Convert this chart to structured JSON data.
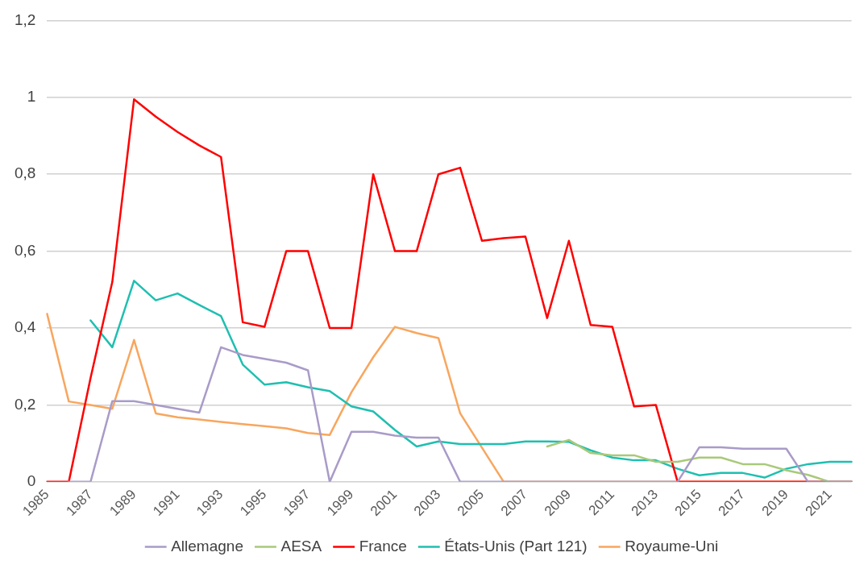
{
  "chart_data": {
    "type": "line",
    "categories": [
      "1985",
      null,
      "1987",
      null,
      "1989",
      null,
      "1991",
      null,
      "1993",
      null,
      "1995",
      null,
      "1997",
      null,
      "1999",
      null,
      "2001",
      null,
      "2003",
      null,
      "2005",
      null,
      "2007",
      null,
      "2009",
      null,
      "2011",
      null,
      "2013",
      null,
      "2015",
      null,
      "2017",
      null,
      "2019",
      null,
      "2021",
      null
    ],
    "series": [
      {
        "name": "Allemagne",
        "color": "#a99bc8",
        "values": [
          null,
          0,
          0,
          0.21,
          0.21,
          0.2,
          0.19,
          0.18,
          0.35,
          0.33,
          0.32,
          0.31,
          0.29,
          0,
          0.13,
          0.13,
          0.12,
          0.115,
          0.115,
          0,
          0,
          0,
          0,
          0,
          0,
          0,
          0,
          0,
          0,
          0,
          0.09,
          0.09,
          0.086,
          0.086,
          0.086,
          0,
          0,
          0
        ]
      },
      {
        "name": "AESA",
        "color": "#a9c97a",
        "values": [
          null,
          null,
          null,
          null,
          null,
          null,
          null,
          null,
          null,
          null,
          null,
          null,
          null,
          null,
          null,
          null,
          null,
          null,
          null,
          null,
          null,
          null,
          null,
          0.092,
          0.109,
          0.075,
          0.069,
          0.069,
          0.052,
          0.052,
          0.063,
          0.063,
          0.046,
          0.046,
          0.03,
          0.018,
          0,
          0
        ]
      },
      {
        "name": "France",
        "color": "#ff0000",
        "values": [
          0,
          0,
          0.27,
          0.52,
          0.995,
          0.95,
          0.91,
          0.875,
          0.845,
          0.415,
          0.403,
          0.6,
          0.6,
          0.4,
          0.4,
          0.8,
          0.6,
          0.6,
          0.8,
          0.817,
          0.627,
          0.634,
          0.638,
          0.426,
          0.627,
          0.408,
          0.403,
          0.196,
          0.2,
          0,
          0,
          0,
          0,
          0,
          0,
          0,
          0,
          0
        ]
      },
      {
        "name": "États-Unis (Part 121)",
        "color": "#1fbfb0",
        "values": [
          null,
          null,
          0.42,
          0.35,
          0.523,
          0.472,
          0.49,
          0.46,
          0.431,
          0.305,
          0.253,
          0.259,
          0.246,
          0.236,
          0.196,
          0.183,
          0.135,
          0.092,
          0.105,
          0.098,
          0.098,
          0.098,
          0.105,
          0.105,
          0.104,
          0.082,
          0.063,
          0.056,
          0.056,
          0.034,
          0.017,
          0.023,
          0.023,
          0.011,
          0.034,
          0.046,
          0.052,
          0.052
        ]
      },
      {
        "name": "Royaume-Uni",
        "color": "#f8a65e",
        "values": [
          0.437,
          0.209,
          0.2,
          0.19,
          0.369,
          0.178,
          0.168,
          0.162,
          0.156,
          0.15,
          0.145,
          0.139,
          0.127,
          0.122,
          0.233,
          0.324,
          0.403,
          0.387,
          0.374,
          0.178,
          0.089,
          0,
          0,
          0,
          0,
          0,
          0,
          0,
          0,
          0,
          0,
          0,
          0,
          0,
          0,
          0,
          0,
          0
        ]
      }
    ],
    "ylim": [
      0,
      1.2
    ],
    "yticks": [
      0,
      {
        "value": 0.2,
        "label": "0,2"
      },
      {
        "value": 0.4,
        "label": "0,4"
      },
      {
        "value": 0.6,
        "label": "0,6"
      },
      {
        "value": 0.8,
        "label": "0,8"
      },
      1,
      {
        "value": 1.2,
        "label": "1,2"
      }
    ],
    "grid": "y",
    "legend": "bottom",
    "marker": "none",
    "line_style": "solid"
  }
}
